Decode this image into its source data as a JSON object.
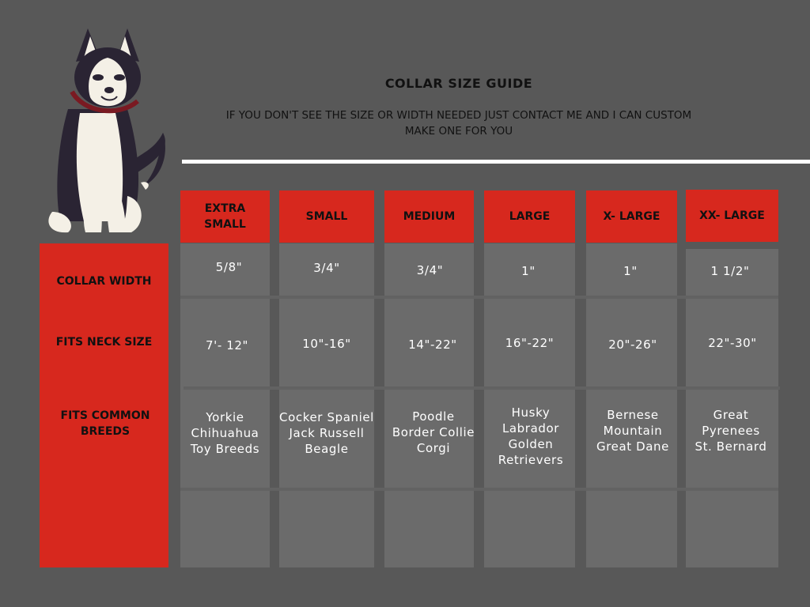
{
  "title": "COLLAR SIZE GUIDE",
  "subtitle": "IF YOU DON'T SEE THE SIZE OR WIDTH NEEDED JUST CONTACT ME AND I CAN CUSTOM MAKE ONE FOR YOU",
  "colors": {
    "background": "#585858",
    "accent_red": "#d7281e",
    "column": "#6b6b6b"
  },
  "row_labels": {
    "collar_width": "COLLAR WIDTH",
    "neck_size": "FITS NECK SIZE",
    "breeds": "FITS COMMON BREEDS"
  },
  "sizes": [
    {
      "label": "EXTRA SMALL",
      "width": "5/8\"",
      "neck": "7'- 12\"",
      "breeds": [
        "Yorkie",
        "Chihuahua",
        "Toy Breeds"
      ]
    },
    {
      "label": "SMALL",
      "width": "3/4\"",
      "neck": "10\"-16\"",
      "breeds": [
        "Cocker Spaniel",
        "Jack Russell",
        "Beagle"
      ]
    },
    {
      "label": "MEDIUM",
      "width": "3/4\"",
      "neck": "14\"-22\"",
      "breeds": [
        "Poodle",
        "Border Collie",
        "Corgi"
      ]
    },
    {
      "label": "LARGE",
      "width": "1\"",
      "neck": "16\"-22\"",
      "breeds": [
        "Husky",
        "Labrador",
        "Golden",
        "Retrievers"
      ]
    },
    {
      "label": "X- LARGE",
      "width": "1\"",
      "neck": "20\"-26\"",
      "breeds": [
        "Bernese",
        "Mountain",
        "Great Dane"
      ]
    },
    {
      "label": "XX- LARGE",
      "width": "1 1/2\"",
      "neck": "22\"-30\"",
      "breeds": [
        "Great",
        "Pyrenees",
        "St. Bernard"
      ]
    }
  ],
  "illustration": "husky-dog-illustration"
}
